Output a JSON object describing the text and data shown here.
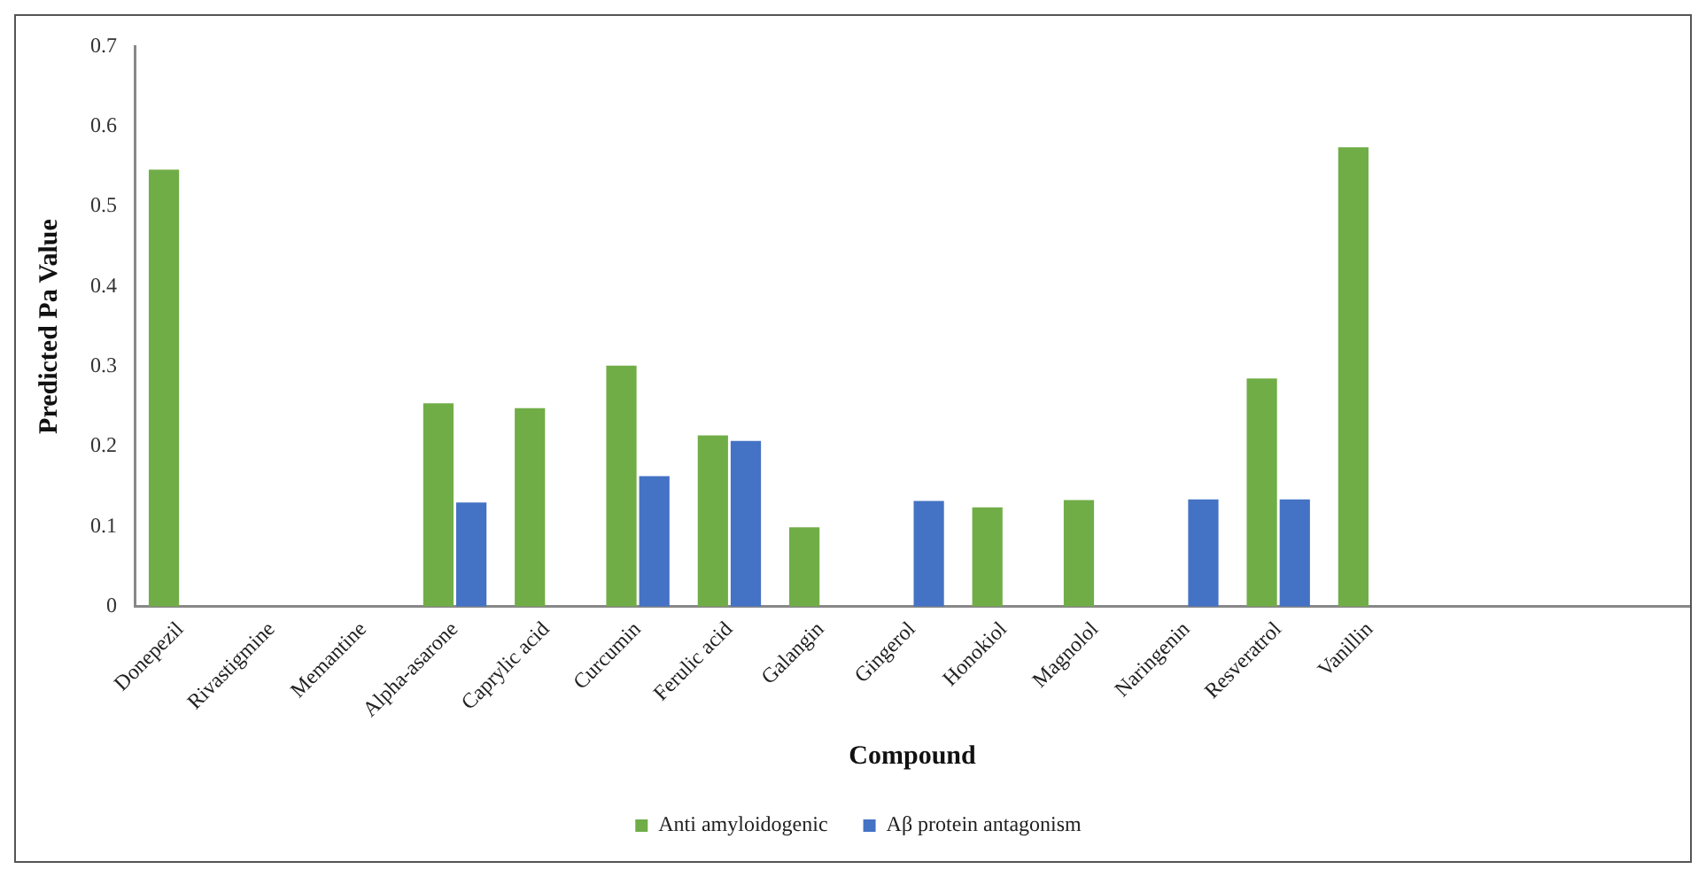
{
  "chart_data": {
    "type": "bar",
    "xlabel": "Compound",
    "ylabel": "Predicted Pa Value",
    "categories": [
      "Donepezil",
      "Rivastigmine",
      "Memantine",
      "Alpha-asarone",
      "Caprylic acid",
      "Curcumin",
      "Ferulic acid",
      "Galangin",
      "Gingerol",
      "Honokiol",
      "Magnolol",
      "Naringenin",
      "Resveratrol",
      "Vanillin",
      null,
      null,
      null
    ],
    "series": [
      {
        "name": "Anti amyloidogenic",
        "color": "#70ad47",
        "values": [
          0.546,
          null,
          null,
          0.254,
          0.248,
          0.301,
          0.214,
          0.099,
          null,
          0.124,
          0.133,
          null,
          0.285,
          0.574,
          null,
          null,
          null
        ]
      },
      {
        "name": "Aβ protein antagonism",
        "color": "#4472c4",
        "values": [
          null,
          null,
          null,
          0.13,
          null,
          0.163,
          0.207,
          null,
          0.132,
          null,
          null,
          0.134,
          0.134,
          null,
          null,
          null,
          null
        ]
      }
    ],
    "ylim": [
      0,
      0.7
    ],
    "yticks": [
      0,
      0.1,
      0.2,
      0.3,
      0.4,
      0.5,
      0.6,
      0.7
    ],
    "grid": false,
    "legend": "bottom"
  }
}
